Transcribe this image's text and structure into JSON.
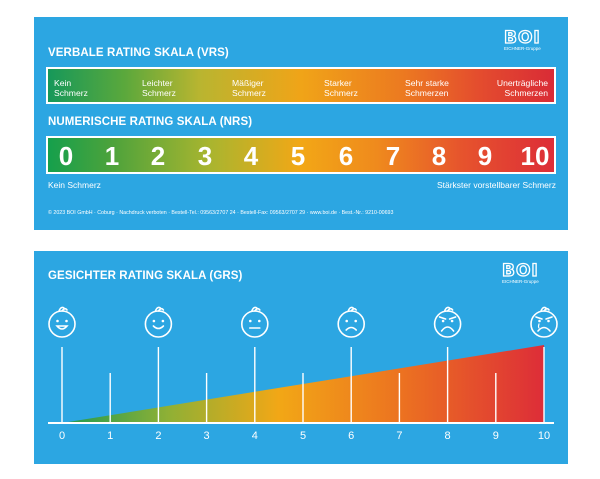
{
  "vrs": {
    "title": "VERBALE RATING SKALA (VRS)",
    "labels": [
      {
        "line1": "Kein",
        "line2": "Schmerz"
      },
      {
        "line1": "Leichter",
        "line2": "Schmerz"
      },
      {
        "line1": "Mäßiger",
        "line2": "Schmerz"
      },
      {
        "line1": "Starker",
        "line2": "Schmerz"
      },
      {
        "line1": "Sehr starke",
        "line2": "Schmerzen"
      },
      {
        "line1": "Unerträgliche",
        "line2": "Schmerzen"
      }
    ]
  },
  "nrs": {
    "title": "NUMERISCHE RATING SKALA (NRS)",
    "numbers": [
      "0",
      "1",
      "2",
      "3",
      "4",
      "5",
      "6",
      "7",
      "8",
      "9",
      "10"
    ],
    "left_caption": "Kein Schmerz",
    "right_caption": "Stärkster vorstellbarer Schmerz"
  },
  "footer": "© 2023 BOI GmbH · Coburg · Nachdruck verboten · Bestell-Tel.: 09563/2707 24 · Bestell-Fax: 09563/2707 29 · www.boi.de · Best.-Nr.: 9210-00693",
  "logo": {
    "mark": "BOI",
    "tagline": "EICHNER-Gruppe"
  },
  "grs": {
    "title": "GESICHTER RATING SKALA (GRS)",
    "ticks": [
      "0",
      "1",
      "2",
      "3",
      "4",
      "5",
      "6",
      "7",
      "8",
      "9",
      "10"
    ],
    "faces": [
      "very-happy-face",
      "happy-face",
      "neutral-face",
      "sad-face",
      "very-sad-face",
      "crying-face"
    ]
  },
  "colors": {
    "background": "#2ca6e2",
    "green": "#15a04c",
    "yellow": "#f2a716",
    "red": "#dd2d38"
  }
}
